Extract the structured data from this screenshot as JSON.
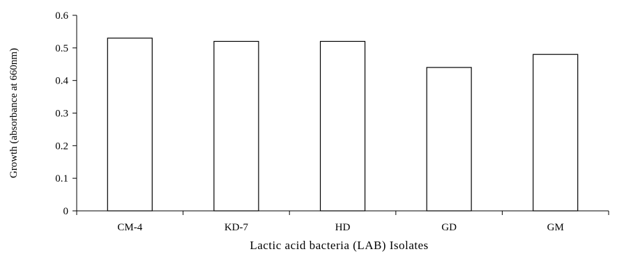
{
  "chart_data": {
    "type": "bar",
    "title": "",
    "xlabel": "Lactic acid bacteria (LAB) Isolates",
    "ylabel": "Growth (absorbance at 660nm)",
    "categories": [
      "CM-4",
      "KD-7",
      "HD",
      "GD",
      "GM"
    ],
    "values": [
      0.53,
      0.52,
      0.52,
      0.44,
      0.48
    ],
    "ylim": [
      0,
      0.6
    ],
    "yticks": [
      "0",
      "0.1",
      "0.2",
      "0.3",
      "0.4",
      "0.5",
      "0.6"
    ],
    "grid": false,
    "legend": "none",
    "colors": {
      "bar_fill": "#ffffff",
      "bar_stroke": "#000000",
      "axis": "#000000"
    }
  }
}
